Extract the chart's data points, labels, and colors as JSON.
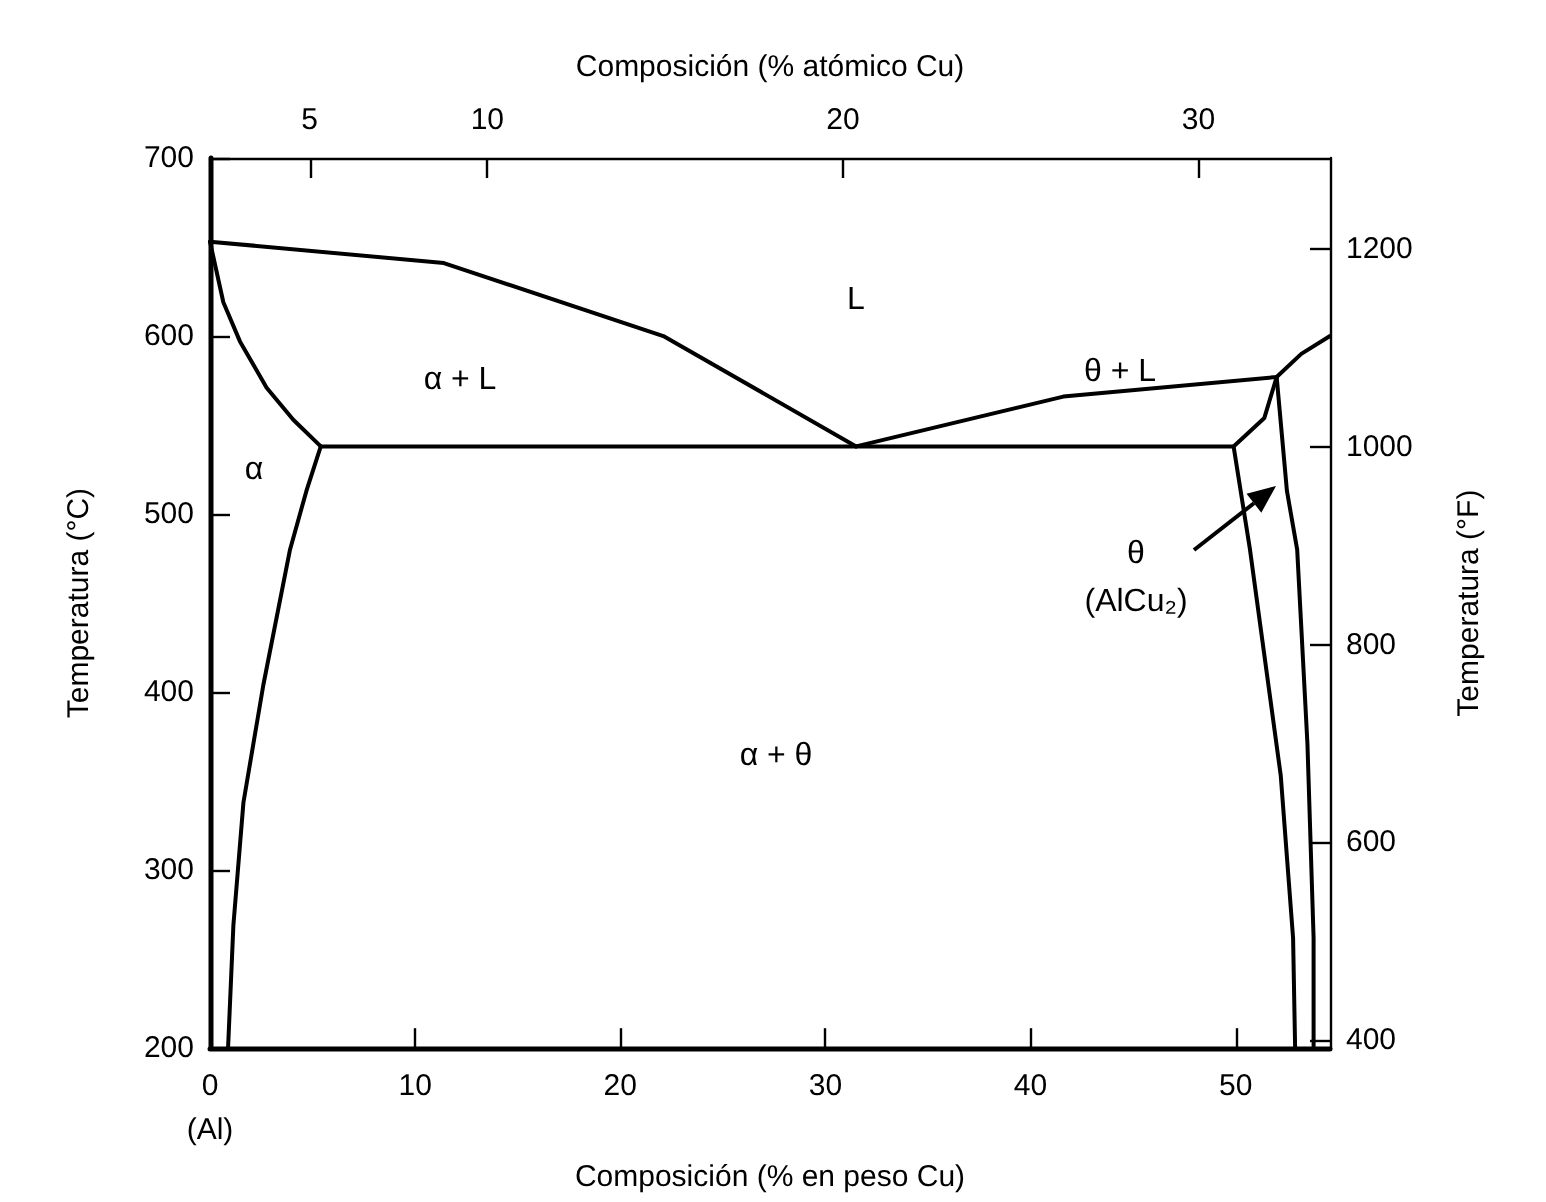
{
  "chart_data": {
    "type": "line",
    "xlabel": "Composición (% en peso Cu)",
    "x2label": "Composición (% atómico Cu)",
    "ylabel": "Temperatura (°C)",
    "y2label": "Temperatura (°F)",
    "xlim": [
      0,
      54.6
    ],
    "xticks": [
      {
        "value": 0,
        "label": "0\n(Al)"
      },
      10,
      20,
      30,
      40,
      50
    ],
    "x2lim": [
      2.2,
      33.7
    ],
    "x2ticks": [
      5,
      10,
      20,
      30
    ],
    "ylim": [
      200,
      700
    ],
    "yticks": [
      200,
      300,
      400,
      500,
      600,
      700
    ],
    "y2lim": [
      392,
      1292
    ],
    "y2ticks": [
      400,
      600,
      800,
      1000,
      1200
    ],
    "grid": false,
    "marker": "none",
    "line_style": "solid",
    "series": [
      {
        "color": "#000000",
        "x": [
          0,
          11.4,
          22.1,
          31.5
        ],
        "values": [
          653,
          641,
          600,
          538
        ]
      },
      {
        "color": "#000000",
        "x": [
          31.5,
          41.6,
          52.0,
          53.2,
          54.6
        ],
        "values": [
          538,
          566,
          577,
          590,
          600
        ]
      },
      {
        "color": "#000000",
        "x": [
          0,
          0.65,
          1.46,
          2.76,
          4.06,
          5.4
        ],
        "values": [
          653,
          619,
          597,
          571,
          553,
          538
        ]
      },
      {
        "color": "#000000",
        "x": [
          5.4,
          4.7,
          3.9,
          2.6,
          1.63,
          1.14,
          0.88
        ],
        "values": [
          538,
          513,
          480,
          404,
          338,
          269,
          200
        ]
      },
      {
        "color": "#000000",
        "x": [
          5.4,
          49.9
        ],
        "values": [
          538,
          538
        ]
      },
      {
        "color": "#000000",
        "x": [
          52.0,
          51.4,
          49.9,
          50.7,
          52.2,
          52.8,
          52.9
        ],
        "values": [
          577,
          554,
          538,
          480,
          353,
          262,
          200
        ]
      },
      {
        "color": "#000000",
        "x": [
          52.0,
          52.5,
          53.0,
          53.5,
          53.8,
          53.8
        ],
        "values": [
          577,
          513,
          480,
          371,
          262,
          200
        ]
      }
    ],
    "annotations": [
      "L",
      "α + L",
      "α",
      "θ + L",
      "α + θ",
      "θ\n(AlCu₂)"
    ]
  }
}
